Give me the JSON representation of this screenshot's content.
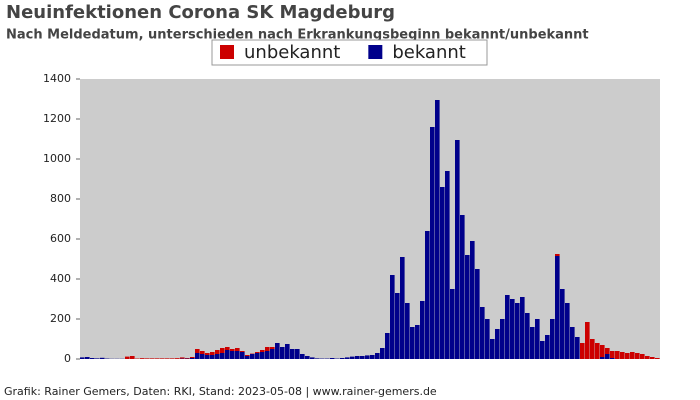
{
  "chart_data": {
    "type": "stacked-bar",
    "title": "Neuinfektionen Corona SK Magdeburg",
    "subtitle": "Nach Meldedatum, unterschieden nach Erkrankungsbeginn bekannt/unbekannt",
    "footer": "Grafik: Rainer Gemers, Daten: RKI, Stand: 2023-05-08 | www.rainer-gemers.de",
    "ylim": [
      0,
      1400
    ],
    "yticks": [
      0,
      200,
      400,
      600,
      800,
      1000,
      1200,
      1400
    ],
    "grid": false,
    "legend": "top",
    "series": [
      {
        "name": "unbekannt",
        "color": "#cc0000",
        "values": [
          0,
          0,
          0,
          0,
          0,
          0,
          0,
          0,
          0,
          12,
          15,
          2,
          4,
          3,
          3,
          3,
          3,
          3,
          3,
          4,
          6,
          3,
          5,
          20,
          15,
          10,
          15,
          20,
          25,
          15,
          10,
          15,
          5,
          5,
          2,
          5,
          10,
          20,
          10,
          0,
          0,
          0,
          0,
          0,
          0,
          0,
          0,
          0,
          0,
          0,
          0,
          0,
          0,
          0,
          0,
          0,
          0,
          0,
          0,
          0,
          0,
          0,
          0,
          0,
          0,
          0,
          0,
          0,
          0,
          0,
          0,
          0,
          0,
          0,
          0,
          0,
          0,
          0,
          0,
          0,
          0,
          0,
          0,
          0,
          0,
          0,
          0,
          0,
          0,
          0,
          0,
          0,
          0,
          0,
          0,
          10,
          0,
          0,
          0,
          0,
          80,
          185,
          100,
          80,
          60,
          30,
          35,
          40,
          35,
          30,
          35,
          30,
          25,
          15,
          10,
          5
        ]
      },
      {
        "name": "bekannt",
        "color": "#00008b",
        "values": [
          8,
          10,
          5,
          3,
          6,
          2,
          1,
          1,
          1,
          0,
          0,
          0,
          0,
          0,
          0,
          0,
          0,
          0,
          0,
          0,
          2,
          2,
          5,
          30,
          25,
          20,
          20,
          25,
          30,
          45,
          40,
          40,
          35,
          15,
          25,
          30,
          35,
          40,
          50,
          80,
          60,
          75,
          50,
          50,
          25,
          15,
          8,
          3,
          2,
          2,
          5,
          2,
          5,
          8,
          12,
          15,
          15,
          18,
          20,
          30,
          55,
          130,
          420,
          330,
          510,
          280,
          160,
          170,
          290,
          640,
          1160,
          1295,
          860,
          940,
          350,
          1095,
          720,
          520,
          590,
          450,
          260,
          200,
          100,
          150,
          200,
          320,
          300,
          280,
          310,
          230,
          160,
          200,
          90,
          120,
          200,
          515,
          350,
          280,
          160,
          110,
          0,
          0,
          0,
          0,
          10,
          25,
          5,
          0,
          0,
          0,
          0,
          0,
          0,
          0,
          0,
          0
        ]
      }
    ]
  }
}
